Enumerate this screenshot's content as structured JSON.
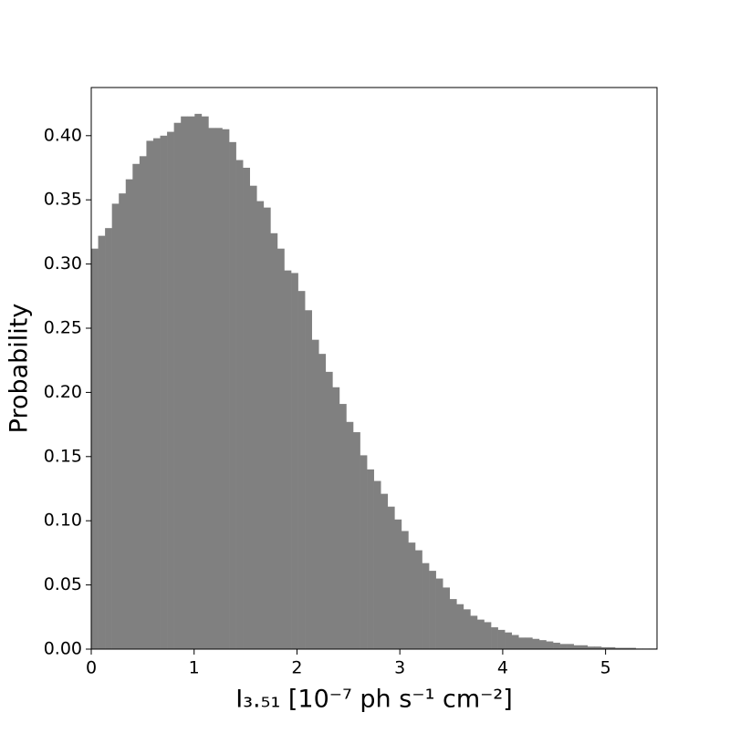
{
  "chart_data": {
    "type": "histogram",
    "xlabel": "I₃.₅₁ [10⁻⁷  ph  s⁻¹  cm⁻²]",
    "ylabel": "Probability",
    "color": "#808080",
    "bins": [
      0,
      0.067,
      0.134,
      0.201,
      0.268,
      0.335,
      0.402,
      0.469,
      0.536,
      0.603,
      0.67,
      0.737,
      0.804,
      0.871,
      0.938,
      1.005,
      1.072,
      1.139,
      1.206,
      1.273,
      1.34,
      1.407,
      1.474,
      1.541,
      1.608,
      1.675,
      1.742,
      1.809,
      1.876,
      1.943,
      2.01,
      2.077,
      2.144,
      2.211,
      2.278,
      2.345,
      2.412,
      2.479,
      2.546,
      2.613,
      2.68,
      2.747,
      2.814,
      2.881,
      2.948,
      3.015,
      3.082,
      3.149,
      3.216,
      3.283,
      3.35,
      3.417,
      3.484,
      3.551,
      3.618,
      3.685,
      3.752,
      3.819,
      3.886,
      3.953,
      4.02,
      4.087,
      4.154,
      4.221,
      4.288,
      4.355,
      4.422,
      4.489,
      4.556,
      4.623,
      4.69,
      4.757,
      4.824,
      4.891,
      4.958,
      5.025,
      5.092,
      5.159,
      5.226,
      5.293,
      5.36,
      5.427,
      5.494
    ],
    "values": [
      0.312,
      0.322,
      0.328,
      0.347,
      0.355,
      0.366,
      0.378,
      0.384,
      0.396,
      0.398,
      0.4,
      0.403,
      0.41,
      0.415,
      0.415,
      0.417,
      0.415,
      0.406,
      0.406,
      0.405,
      0.395,
      0.381,
      0.375,
      0.361,
      0.349,
      0.344,
      0.324,
      0.312,
      0.295,
      0.293,
      0.279,
      0.264,
      0.241,
      0.23,
      0.216,
      0.204,
      0.191,
      0.177,
      0.169,
      0.151,
      0.14,
      0.131,
      0.121,
      0.111,
      0.101,
      0.092,
      0.083,
      0.077,
      0.067,
      0.061,
      0.055,
      0.048,
      0.039,
      0.035,
      0.031,
      0.026,
      0.023,
      0.021,
      0.017,
      0.015,
      0.013,
      0.011,
      0.009,
      0.009,
      0.008,
      0.007,
      0.006,
      0.005,
      0.004,
      0.004,
      0.003,
      0.003,
      0.002,
      0.002,
      0.0015,
      0.0015,
      0.001,
      0.001,
      0.001,
      0.0005,
      0.0005,
      0.0005
    ],
    "xlim": [
      0,
      5.5
    ],
    "ylim": [
      0,
      0.4375
    ],
    "xticks": [
      0,
      1,
      2,
      3,
      4,
      5
    ],
    "yticks": [
      {
        "value": 0,
        "label": "0.00"
      },
      {
        "value": 0.05,
        "label": "0.05"
      },
      {
        "value": 0.1,
        "label": "0.10"
      },
      {
        "value": 0.15,
        "label": "0.15"
      },
      {
        "value": 0.2,
        "label": "0.20"
      },
      {
        "value": 0.25,
        "label": "0.25"
      },
      {
        "value": 0.3,
        "label": "0.30"
      },
      {
        "value": 0.35,
        "label": "0.35"
      },
      {
        "value": 0.4,
        "label": "0.40"
      }
    ]
  }
}
